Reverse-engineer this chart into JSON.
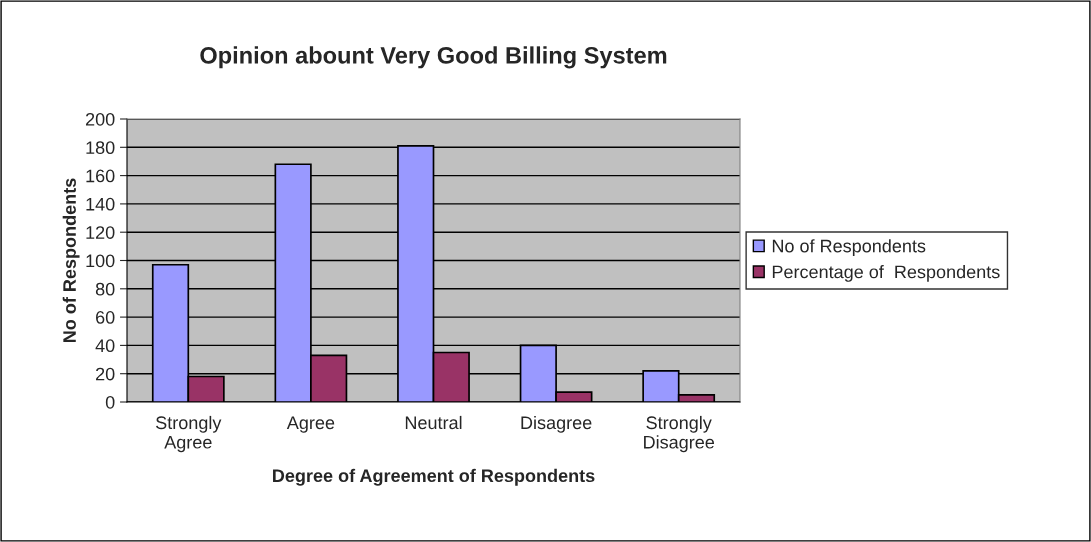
{
  "chart_data": {
    "type": "bar",
    "title": "Opinion abount Very Good Billing System",
    "xlabel": "Degree of Agreement of Respondents",
    "ylabel": "No of Respondents",
    "categories": [
      "Strongly\nAgree",
      "Agree",
      "Neutral",
      "Disagree",
      "Strongly\nDisagree"
    ],
    "series": [
      {
        "name": "No of Respondents",
        "color": "#9999ff",
        "values": [
          97,
          168,
          181,
          40,
          22
        ]
      },
      {
        "name": "Percentage of  Respondents",
        "color": "#993366",
        "values": [
          18,
          33,
          35,
          7,
          5
        ]
      }
    ],
    "ylim": [
      0,
      200
    ],
    "yticks": [
      0,
      20,
      40,
      60,
      80,
      100,
      120,
      140,
      160,
      180,
      200
    ],
    "grid": "y",
    "legend": "right"
  }
}
